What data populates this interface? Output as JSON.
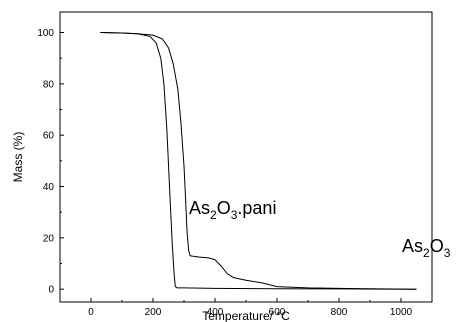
{
  "chart_data": {
    "type": "line",
    "title": "",
    "xlabel": "Temperature/ °C",
    "ylabel": "Mass (%)",
    "xlim": [
      -100,
      1100
    ],
    "ylim": [
      -5,
      108
    ],
    "xticks": [
      0,
      200,
      400,
      600,
      800,
      1000
    ],
    "yticks": [
      0,
      20,
      40,
      60,
      80,
      100
    ],
    "grid": false,
    "line_color": "#000000",
    "series": [
      {
        "label_main": "As",
        "label_sub1": "2",
        "label_mid": "O",
        "label_sub2": "3",
        "x": [
          30,
          100,
          150,
          190,
          210,
          225,
          235,
          245,
          255,
          262,
          268,
          272,
          278,
          300,
          400,
          600,
          800,
          1050
        ],
        "y": [
          100,
          99.8,
          99.5,
          98.5,
          96,
          90,
          80,
          62,
          35,
          18,
          6,
          1,
          0.5,
          0.5,
          0.3,
          0.2,
          0.1,
          0
        ]
      },
      {
        "label_main": "As",
        "label_sub1": "2",
        "label_mid": "O",
        "label_sub2": "3",
        "label_tail": ".pani",
        "x": [
          30,
          100,
          150,
          200,
          230,
          250,
          265,
          280,
          290,
          300,
          305,
          310,
          315,
          320,
          330,
          350,
          380,
          400,
          420,
          440,
          460,
          500,
          550,
          600,
          700,
          800,
          900,
          1050
        ],
        "y": [
          100,
          99.8,
          99.5,
          99,
          97.5,
          94,
          88,
          78,
          65,
          48,
          35,
          22,
          15,
          13,
          12.8,
          12.5,
          12.2,
          11.5,
          9,
          6,
          4.5,
          3.5,
          2.5,
          1,
          0.5,
          0.3,
          0.2,
          0
        ]
      }
    ]
  }
}
